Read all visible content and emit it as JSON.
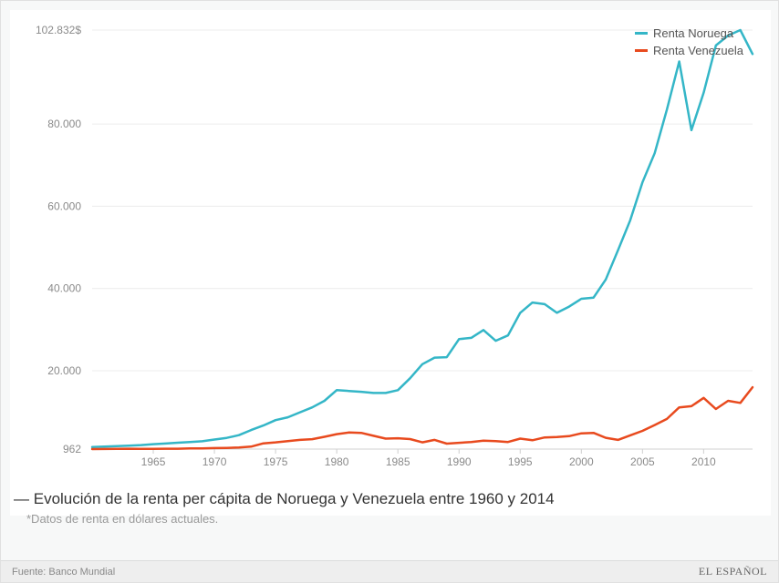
{
  "chart": {
    "type": "line",
    "background_color": "#ffffff",
    "panel_background": "#f7f8f8",
    "grid_color": "#ececec",
    "axis_text_color": "#8a8a8a",
    "axis_fontsize": 12,
    "line_width": 2.5,
    "x": {
      "min": 1960,
      "max": 2014,
      "ticks": [
        1965,
        1970,
        1975,
        1980,
        1985,
        1990,
        1995,
        2000,
        2005,
        2010
      ]
    },
    "y": {
      "min": 962,
      "max": 102832,
      "ticks": [
        {
          "v": 962,
          "label": "962"
        },
        {
          "v": 20000,
          "label": "20.000"
        },
        {
          "v": 40000,
          "label": "40.000"
        },
        {
          "v": 60000,
          "label": "60.000"
        },
        {
          "v": 80000,
          "label": "80.000"
        },
        {
          "v": 102832,
          "label": "102.832$"
        }
      ]
    },
    "series": [
      {
        "key": "norway",
        "label": "Renta Noruega",
        "color": "#34b6c7",
        "data": [
          [
            1960,
            1440
          ],
          [
            1961,
            1560
          ],
          [
            1962,
            1670
          ],
          [
            1963,
            1780
          ],
          [
            1964,
            1940
          ],
          [
            1965,
            2160
          ],
          [
            1966,
            2320
          ],
          [
            1967,
            2510
          ],
          [
            1968,
            2660
          ],
          [
            1969,
            2870
          ],
          [
            1970,
            3280
          ],
          [
            1971,
            3690
          ],
          [
            1972,
            4340
          ],
          [
            1973,
            5600
          ],
          [
            1974,
            6700
          ],
          [
            1975,
            8000
          ],
          [
            1976,
            8700
          ],
          [
            1977,
            9900
          ],
          [
            1978,
            11100
          ],
          [
            1979,
            12700
          ],
          [
            1980,
            15300
          ],
          [
            1981,
            15100
          ],
          [
            1982,
            14900
          ],
          [
            1983,
            14600
          ],
          [
            1984,
            14600
          ],
          [
            1985,
            15300
          ],
          [
            1986,
            18200
          ],
          [
            1987,
            21600
          ],
          [
            1988,
            23200
          ],
          [
            1989,
            23300
          ],
          [
            1990,
            27700
          ],
          [
            1991,
            28000
          ],
          [
            1992,
            29900
          ],
          [
            1993,
            27300
          ],
          [
            1994,
            28600
          ],
          [
            1995,
            34100
          ],
          [
            1996,
            36600
          ],
          [
            1997,
            36200
          ],
          [
            1998,
            34100
          ],
          [
            1999,
            35600
          ],
          [
            2000,
            37500
          ],
          [
            2001,
            37800
          ],
          [
            2002,
            42200
          ],
          [
            2003,
            49300
          ],
          [
            2004,
            56600
          ],
          [
            2005,
            65800
          ],
          [
            2006,
            72900
          ],
          [
            2007,
            83500
          ],
          [
            2008,
            95200
          ],
          [
            2009,
            78500
          ],
          [
            2010,
            87600
          ],
          [
            2011,
            99100
          ],
          [
            2012,
            101500
          ],
          [
            2013,
            102832
          ],
          [
            2014,
            97000
          ]
        ]
      },
      {
        "key": "venezuela",
        "label": "Renta Venezuela",
        "color": "#e84a1e",
        "data": [
          [
            1960,
            960
          ],
          [
            1961,
            980
          ],
          [
            1962,
            1000
          ],
          [
            1963,
            1050
          ],
          [
            1964,
            1000
          ],
          [
            1965,
            1030
          ],
          [
            1966,
            1040
          ],
          [
            1967,
            1060
          ],
          [
            1968,
            1120
          ],
          [
            1969,
            1150
          ],
          [
            1970,
            1200
          ],
          [
            1971,
            1260
          ],
          [
            1972,
            1340
          ],
          [
            1973,
            1550
          ],
          [
            1974,
            2350
          ],
          [
            1975,
            2600
          ],
          [
            1976,
            2920
          ],
          [
            1977,
            3200
          ],
          [
            1978,
            3380
          ],
          [
            1979,
            3960
          ],
          [
            1980,
            4600
          ],
          [
            1981,
            5000
          ],
          [
            1982,
            4900
          ],
          [
            1983,
            4200
          ],
          [
            1984,
            3500
          ],
          [
            1985,
            3600
          ],
          [
            1986,
            3400
          ],
          [
            1987,
            2600
          ],
          [
            1988,
            3200
          ],
          [
            1989,
            2300
          ],
          [
            1990,
            2500
          ],
          [
            1991,
            2700
          ],
          [
            1992,
            3000
          ],
          [
            1993,
            2900
          ],
          [
            1994,
            2700
          ],
          [
            1995,
            3500
          ],
          [
            1996,
            3100
          ],
          [
            1997,
            3800
          ],
          [
            1998,
            3900
          ],
          [
            1999,
            4100
          ],
          [
            2000,
            4800
          ],
          [
            2001,
            4900
          ],
          [
            2002,
            3700
          ],
          [
            2003,
            3200
          ],
          [
            2004,
            4300
          ],
          [
            2005,
            5400
          ],
          [
            2006,
            6800
          ],
          [
            2007,
            8300
          ],
          [
            2008,
            11100
          ],
          [
            2009,
            11400
          ],
          [
            2010,
            13400
          ],
          [
            2011,
            10700
          ],
          [
            2012,
            12700
          ],
          [
            2013,
            12200
          ],
          [
            2014,
            16000
          ]
        ]
      }
    ]
  },
  "legend_position": "top-right",
  "caption": {
    "dash": "—",
    "title": "Evolución de la renta per cápita de Noruega y Venezuela entre 1960 y 2014",
    "note": "*Datos de renta en dólares actuales."
  },
  "footer": {
    "source_prefix": "Fuente:",
    "source": "Banco Mundial",
    "brand": "EL ESPAÑOL"
  }
}
